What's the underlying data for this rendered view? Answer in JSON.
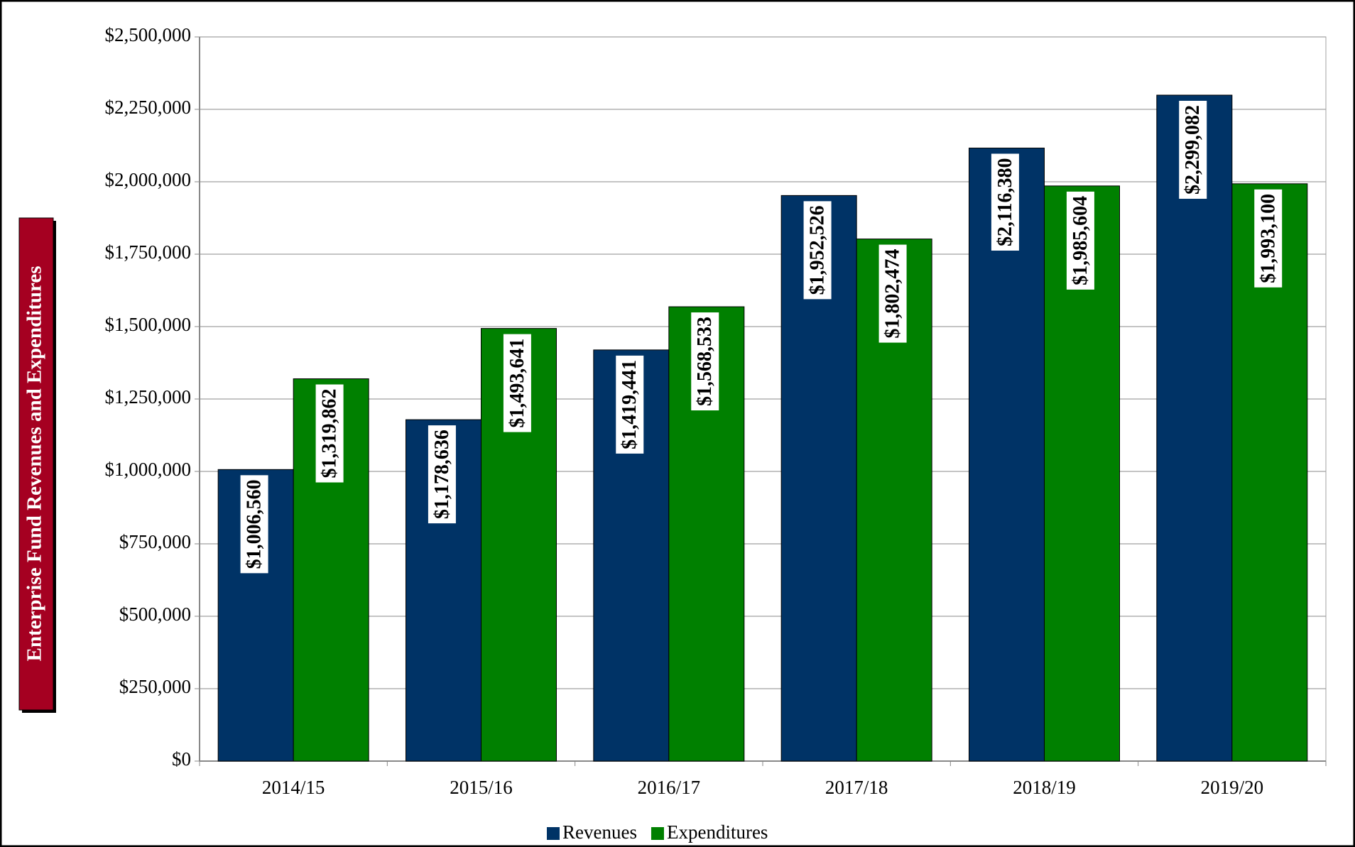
{
  "chart_data": {
    "type": "bar",
    "y_label": "Enterprise Fund Revenues and Expenditures",
    "categories": [
      "2014/15",
      "2015/16",
      "2016/17",
      "2017/18",
      "2018/19",
      "2019/20"
    ],
    "series": [
      {
        "name": "Revenues",
        "color": "#003366",
        "values": [
          1006560,
          1178636,
          1419441,
          1952526,
          2116380,
          2299082
        ],
        "value_labels": [
          "$1,006,560",
          "$1,178,636",
          "$1,419,441",
          "$1,952,526",
          "$2,116,380",
          "$2,299,082"
        ]
      },
      {
        "name": "Expenditures",
        "color": "#008000",
        "values": [
          1319862,
          1493641,
          1568533,
          1802474,
          1985604,
          1993100
        ],
        "value_labels": [
          "$1,319,862",
          "$1,493,641",
          "$1,568,533",
          "$1,802,474",
          "$1,985,604",
          "$1,993,100"
        ]
      }
    ],
    "ylim": [
      0,
      2500000
    ],
    "yticks": [
      {
        "value": 0,
        "label": "$0"
      },
      {
        "value": 250000,
        "label": "$250,000"
      },
      {
        "value": 500000,
        "label": "$500,000"
      },
      {
        "value": 750000,
        "label": "$750,000"
      },
      {
        "value": 1000000,
        "label": "$1,000,000"
      },
      {
        "value": 1250000,
        "label": "$1,250,000"
      },
      {
        "value": 1500000,
        "label": "$1,500,000"
      },
      {
        "value": 1750000,
        "label": "$1,750,000"
      },
      {
        "value": 2000000,
        "label": "$2,000,000"
      },
      {
        "value": 2250000,
        "label": "$2,250,000"
      },
      {
        "value": 2500000,
        "label": "$2,500,000"
      }
    ],
    "grid": true,
    "legend": "bottom"
  }
}
